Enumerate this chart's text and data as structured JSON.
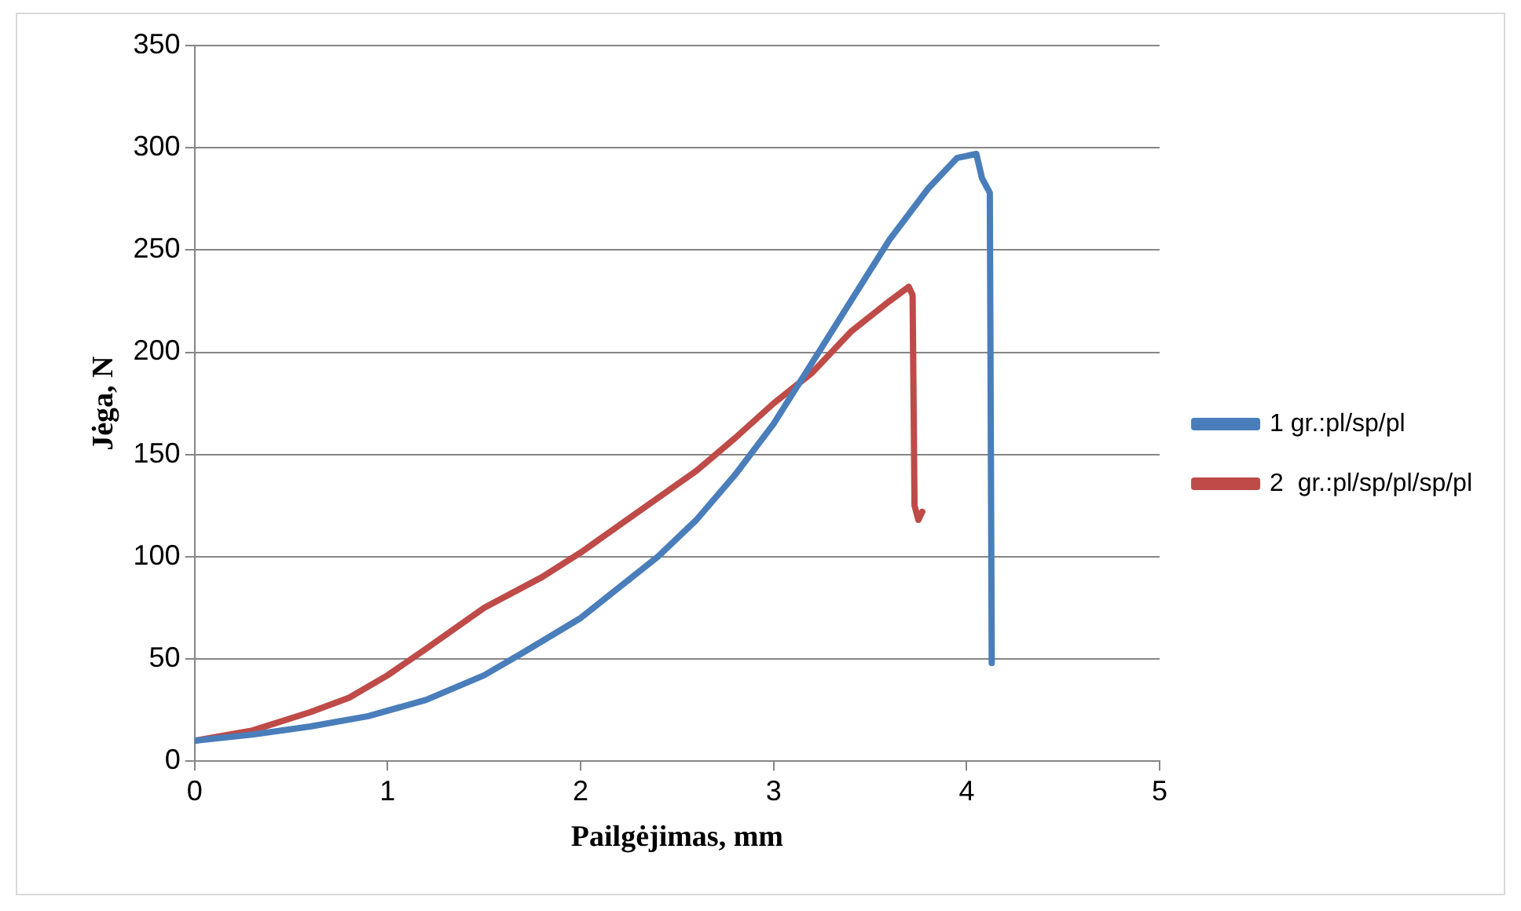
{
  "chart_data": {
    "type": "line",
    "xlabel": "Pailgėjimas, mm",
    "ylabel": "Jėga, N",
    "xlim": [
      0,
      5
    ],
    "xticks": [
      0,
      1,
      2,
      3,
      4,
      5
    ],
    "ylim": [
      0,
      350
    ],
    "yticks": [
      0,
      50,
      100,
      150,
      200,
      250,
      300,
      350
    ],
    "grid": "y",
    "legend": "right",
    "marker": "none",
    "line_style": "solid",
    "series": [
      {
        "name": "1 gr.:pl/sp/pl",
        "color": "#4a7ebb",
        "x": [
          0,
          0.3,
          0.6,
          0.9,
          1.2,
          1.5,
          1.7,
          2.0,
          2.2,
          2.4,
          2.6,
          2.8,
          3.0,
          3.2,
          3.4,
          3.6,
          3.8,
          3.95,
          4.05,
          4.08,
          4.12,
          4.13
        ],
        "values": [
          10,
          13,
          17,
          22,
          30,
          42,
          53,
          70,
          85,
          100,
          118,
          140,
          165,
          195,
          225,
          255,
          280,
          295,
          297,
          285,
          278,
          48
        ]
      },
      {
        "name": "2  gr.:pl/sp/pl/sp/pl",
        "color": "#be4b48",
        "x": [
          0,
          0.3,
          0.6,
          0.8,
          1.0,
          1.2,
          1.5,
          1.8,
          2.0,
          2.3,
          2.6,
          2.8,
          3.0,
          3.2,
          3.4,
          3.6,
          3.7,
          3.72,
          3.73,
          3.75,
          3.77
        ],
        "values": [
          10,
          15,
          24,
          31,
          42,
          55,
          75,
          90,
          102,
          122,
          142,
          158,
          175,
          190,
          210,
          225,
          232,
          228,
          125,
          118,
          122
        ]
      }
    ]
  }
}
